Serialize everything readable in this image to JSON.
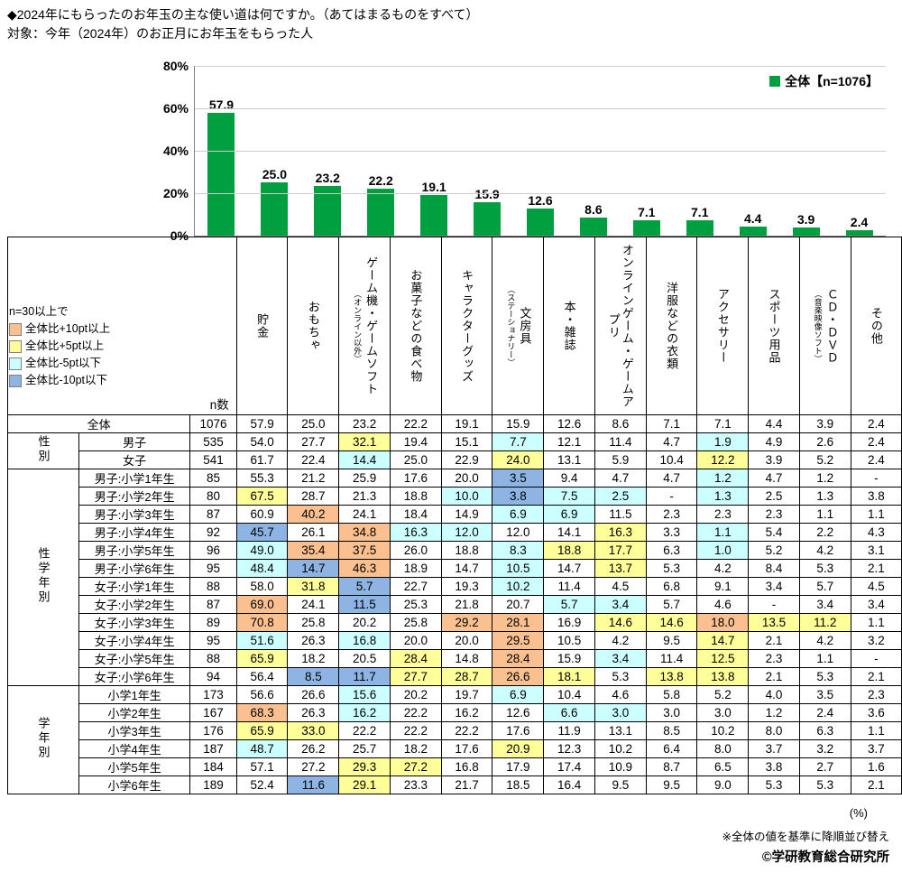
{
  "title": "◆2024年にもらったのお年玉の主な使い道は何ですか。（あてはまるものをすべて）",
  "subtitle": "対象：今年（2024年）のお正月にお年玉をもらった人",
  "chart_legend": "全体【n=1076】",
  "colors": {
    "bar_green": "#00A040",
    "plus10pt": "#FAC090",
    "plus5pt": "#FFFF99",
    "minus5pt": "#CCFFFF",
    "minus10pt": "#8DB4E2"
  },
  "threshold_legend": {
    "title": "n=30以上で",
    "items": [
      {
        "label": "全体比+10pt以上",
        "flag": "p10"
      },
      {
        "label": "全体比+5pt以上",
        "flag": "p5"
      },
      {
        "label": "全体比-5pt以下",
        "flag": "m5"
      },
      {
        "label": "全体比-10pt以下",
        "flag": "m10"
      }
    ]
  },
  "chart_data": {
    "type": "bar",
    "title": "2024年にもらったのお年玉の主な使い道（あてはまるものをすべて）",
    "series_name": "全体【n=1076】",
    "categories": [
      "貯金",
      "おもちゃ",
      "ゲーム機・ゲームソフト（オンライン以外）",
      "お菓子などの食べ物",
      "キャラクターグッズ",
      "文房具（ステーショナリー）",
      "本・雑誌",
      "オンラインゲーム・ゲームアプリ",
      "洋服などの衣類",
      "アクセサリー",
      "スポーツ用品",
      "ＣＤ・ＤＶＤ（音楽映像ソフト）",
      "その他"
    ],
    "values": [
      57.9,
      25.0,
      23.2,
      22.2,
      19.1,
      15.9,
      12.6,
      8.6,
      7.1,
      7.1,
      4.4,
      3.9,
      2.4
    ],
    "ylim": [
      0,
      80
    ],
    "yticks": [
      "80%",
      "60%",
      "40%",
      "20%",
      "0%"
    ],
    "grid": true,
    "legend_position": "top-right",
    "bar_color": "#00A040"
  },
  "table": {
    "n_header": "n数",
    "columns": [
      {
        "label": "貯金",
        "sub": ""
      },
      {
        "label": "おもちゃ",
        "sub": ""
      },
      {
        "label": "ゲーム機・ゲームソフト",
        "sub": "（オンライン以外）"
      },
      {
        "label": "お菓子などの食べ物",
        "sub": ""
      },
      {
        "label": "キャラクターグッズ",
        "sub": ""
      },
      {
        "label": "文房具",
        "sub": "（ステーショナリー）"
      },
      {
        "label": "本・雑誌",
        "sub": ""
      },
      {
        "label": "オンラインゲーム・ゲームアプリ",
        "sub": ""
      },
      {
        "label": "洋服などの衣類",
        "sub": ""
      },
      {
        "label": "アクセサリー",
        "sub": ""
      },
      {
        "label": "スポーツ用品",
        "sub": ""
      },
      {
        "label": "ＣＤ・ＤＶＤ",
        "sub": "（音楽映像ソフト）"
      },
      {
        "label": "その他",
        "sub": ""
      }
    ],
    "rows": [
      {
        "label": "全体",
        "colspan2": true,
        "n": "1076",
        "values": [
          "57.9",
          "25.0",
          "23.2",
          "22.2",
          "19.1",
          "15.9",
          "12.6",
          "8.6",
          "7.1",
          "7.1",
          "4.4",
          "3.9",
          "2.4"
        ],
        "flags": [
          "",
          "",
          "",
          "",
          "",
          "",
          "",
          "",
          "",
          "",
          "",
          "",
          ""
        ]
      },
      {
        "group": "性別",
        "span": 2,
        "label": "男子",
        "n": "535",
        "values": [
          "54.0",
          "27.7",
          "32.1",
          "19.4",
          "15.1",
          "7.7",
          "12.1",
          "11.4",
          "4.7",
          "1.9",
          "4.9",
          "2.6",
          "2.4"
        ],
        "flags": [
          "",
          "",
          "p5",
          "",
          "",
          "m5",
          "",
          "",
          "",
          "m5",
          "",
          "",
          ""
        ]
      },
      {
        "label": "女子",
        "n": "541",
        "values": [
          "61.7",
          "22.4",
          "14.4",
          "25.0",
          "22.9",
          "24.0",
          "13.1",
          "5.9",
          "10.4",
          "12.2",
          "3.9",
          "5.2",
          "2.4"
        ],
        "flags": [
          "",
          "",
          "m5",
          "",
          "",
          "p5",
          "",
          "",
          "",
          "p5",
          "",
          "",
          ""
        ]
      },
      {
        "group": "性学年別",
        "span": 12,
        "label": "男子:小学1年生",
        "n": "85",
        "values": [
          "55.3",
          "21.2",
          "25.9",
          "17.6",
          "20.0",
          "3.5",
          "9.4",
          "4.7",
          "4.7",
          "1.2",
          "4.7",
          "1.2",
          "-"
        ],
        "flags": [
          "",
          "",
          "",
          "",
          "",
          "m10",
          "",
          "",
          "",
          "m5",
          "",
          "",
          ""
        ]
      },
      {
        "label": "男子:小学2年生",
        "n": "80",
        "values": [
          "67.5",
          "28.7",
          "21.3",
          "18.8",
          "10.0",
          "3.8",
          "7.5",
          "2.5",
          "-",
          "1.3",
          "2.5",
          "1.3",
          "3.8"
        ],
        "flags": [
          "p5",
          "",
          "",
          "",
          "m5",
          "m10",
          "m5",
          "m5",
          "",
          "m5",
          "",
          "",
          ""
        ]
      },
      {
        "label": "男子:小学3年生",
        "n": "87",
        "values": [
          "60.9",
          "40.2",
          "24.1",
          "18.4",
          "14.9",
          "6.9",
          "6.9",
          "11.5",
          "2.3",
          "2.3",
          "2.3",
          "1.1",
          "1.1"
        ],
        "flags": [
          "",
          "p10",
          "",
          "",
          "",
          "m5",
          "m5",
          "",
          "",
          "",
          "",
          "",
          ""
        ]
      },
      {
        "label": "男子:小学4年生",
        "n": "92",
        "values": [
          "45.7",
          "26.1",
          "34.8",
          "16.3",
          "12.0",
          "12.0",
          "14.1",
          "16.3",
          "3.3",
          "1.1",
          "5.4",
          "2.2",
          "4.3"
        ],
        "flags": [
          "m10",
          "",
          "p10",
          "m5",
          "m5",
          "",
          "",
          "p5",
          "",
          "m5",
          "",
          "",
          ""
        ]
      },
      {
        "label": "男子:小学5年生",
        "n": "96",
        "values": [
          "49.0",
          "35.4",
          "37.5",
          "26.0",
          "18.8",
          "8.3",
          "18.8",
          "17.7",
          "6.3",
          "1.0",
          "5.2",
          "4.2",
          "3.1"
        ],
        "flags": [
          "m5",
          "p10",
          "p10",
          "",
          "",
          "m5",
          "p5",
          "p5",
          "",
          "m5",
          "",
          "",
          ""
        ]
      },
      {
        "label": "男子:小学6年生",
        "n": "95",
        "values": [
          "48.4",
          "14.7",
          "46.3",
          "18.9",
          "14.7",
          "10.5",
          "14.7",
          "13.7",
          "5.3",
          "4.2",
          "8.4",
          "5.3",
          "2.1"
        ],
        "flags": [
          "m5",
          "m10",
          "p10",
          "",
          "",
          "m5",
          "",
          "p5",
          "",
          "",
          "",
          "",
          ""
        ]
      },
      {
        "label": "女子:小学1年生",
        "n": "88",
        "values": [
          "58.0",
          "31.8",
          "5.7",
          "22.7",
          "19.3",
          "10.2",
          "11.4",
          "4.5",
          "6.8",
          "9.1",
          "3.4",
          "5.7",
          "4.5"
        ],
        "flags": [
          "",
          "p5",
          "m10",
          "",
          "",
          "m5",
          "",
          "",
          "",
          "",
          "",
          "",
          ""
        ]
      },
      {
        "label": "女子:小学2年生",
        "n": "87",
        "values": [
          "69.0",
          "24.1",
          "11.5",
          "25.3",
          "21.8",
          "20.7",
          "5.7",
          "3.4",
          "5.7",
          "4.6",
          "-",
          "3.4",
          "3.4"
        ],
        "flags": [
          "p10",
          "",
          "m10",
          "",
          "",
          "",
          "m5",
          "m5",
          "",
          "",
          "",
          "",
          ""
        ]
      },
      {
        "label": "女子:小学3年生",
        "n": "89",
        "values": [
          "70.8",
          "25.8",
          "20.2",
          "25.8",
          "29.2",
          "28.1",
          "16.9",
          "14.6",
          "14.6",
          "18.0",
          "13.5",
          "11.2",
          "1.1"
        ],
        "flags": [
          "p10",
          "",
          "",
          "",
          "p10",
          "p10",
          "",
          "p5",
          "p5",
          "p10",
          "p5",
          "p5",
          ""
        ]
      },
      {
        "label": "女子:小学4年生",
        "n": "95",
        "values": [
          "51.6",
          "26.3",
          "16.8",
          "20.0",
          "20.0",
          "29.5",
          "10.5",
          "4.2",
          "9.5",
          "14.7",
          "2.1",
          "4.2",
          "3.2"
        ],
        "flags": [
          "m5",
          "",
          "m5",
          "",
          "",
          "p10",
          "",
          "",
          "",
          "p5",
          "",
          "",
          ""
        ]
      },
      {
        "label": "女子:小学5年生",
        "n": "88",
        "values": [
          "65.9",
          "18.2",
          "20.5",
          "28.4",
          "14.8",
          "28.4",
          "15.9",
          "3.4",
          "11.4",
          "12.5",
          "2.3",
          "1.1",
          "-"
        ],
        "flags": [
          "p5",
          "",
          "",
          "p5",
          "",
          "p10",
          "",
          "m5",
          "",
          "p5",
          "",
          "",
          ""
        ]
      },
      {
        "label": "女子:小学6年生",
        "n": "94",
        "values": [
          "56.4",
          "8.5",
          "11.7",
          "27.7",
          "28.7",
          "26.6",
          "18.1",
          "5.3",
          "13.8",
          "13.8",
          "2.1",
          "5.3",
          "2.1"
        ],
        "flags": [
          "",
          "m10",
          "m10",
          "p5",
          "p5",
          "p10",
          "p5",
          "",
          "p5",
          "p5",
          "",
          "",
          ""
        ]
      },
      {
        "group": "学年別",
        "span": 6,
        "label": "小学1年生",
        "n": "173",
        "values": [
          "56.6",
          "26.6",
          "15.6",
          "20.2",
          "19.7",
          "6.9",
          "10.4",
          "4.6",
          "5.8",
          "5.2",
          "4.0",
          "3.5",
          "2.3"
        ],
        "flags": [
          "",
          "",
          "m5",
          "",
          "",
          "m5",
          "",
          "",
          "",
          "",
          "",
          "",
          ""
        ]
      },
      {
        "label": "小学2年生",
        "n": "167",
        "values": [
          "68.3",
          "26.3",
          "16.2",
          "22.2",
          "16.2",
          "12.6",
          "6.6",
          "3.0",
          "3.0",
          "3.0",
          "1.2",
          "2.4",
          "3.6"
        ],
        "flags": [
          "p10",
          "",
          "m5",
          "",
          "",
          "",
          "m5",
          "m5",
          "",
          "",
          "",
          "",
          ""
        ]
      },
      {
        "label": "小学3年生",
        "n": "176",
        "values": [
          "65.9",
          "33.0",
          "22.2",
          "22.2",
          "22.2",
          "17.6",
          "11.9",
          "13.1",
          "8.5",
          "10.2",
          "8.0",
          "6.3",
          "1.1"
        ],
        "flags": [
          "p5",
          "p5",
          "",
          "",
          "",
          "",
          "",
          "",
          "",
          "",
          "",
          "",
          ""
        ]
      },
      {
        "label": "小学4年生",
        "n": "187",
        "values": [
          "48.7",
          "26.2",
          "25.7",
          "18.2",
          "17.6",
          "20.9",
          "12.3",
          "10.2",
          "6.4",
          "8.0",
          "3.7",
          "3.2",
          "3.7"
        ],
        "flags": [
          "m5",
          "",
          "",
          "",
          "",
          "p5",
          "",
          "",
          "",
          "",
          "",
          "",
          ""
        ]
      },
      {
        "label": "小学5年生",
        "n": "184",
        "values": [
          "57.1",
          "27.2",
          "29.3",
          "27.2",
          "16.8",
          "17.9",
          "17.4",
          "10.9",
          "8.7",
          "6.5",
          "3.8",
          "2.7",
          "1.6"
        ],
        "flags": [
          "",
          "",
          "p5",
          "p5",
          "",
          "",
          "",
          "",
          "",
          "",
          "",
          "",
          ""
        ]
      },
      {
        "label": "小学6年生",
        "n": "189",
        "values": [
          "52.4",
          "11.6",
          "29.1",
          "23.3",
          "21.7",
          "18.5",
          "16.4",
          "9.5",
          "9.5",
          "9.0",
          "5.3",
          "5.3",
          "2.1"
        ],
        "flags": [
          "",
          "m10",
          "p5",
          "",
          "",
          "",
          "",
          "",
          "",
          "",
          "",
          "",
          ""
        ]
      }
    ]
  },
  "footer": {
    "percent_label": "(%)",
    "sort_note": "※全体の値を基準に降順並び替え",
    "copyright": "©学研教育総合研究所"
  }
}
